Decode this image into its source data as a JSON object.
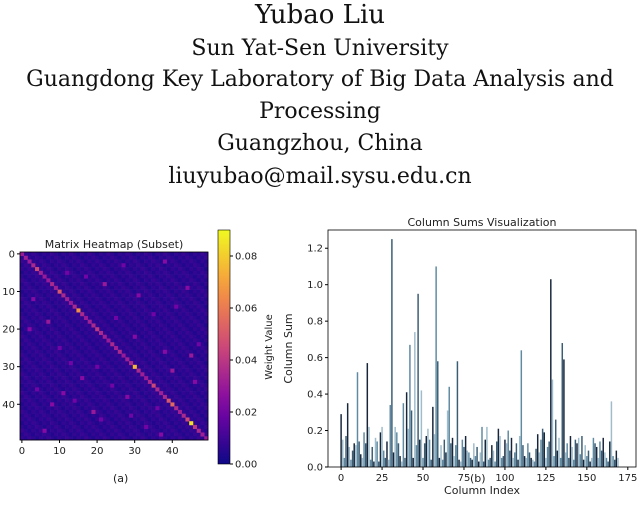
{
  "author": {
    "name": "Yubao Liu",
    "affiliation_lines": [
      "Sun Yat-Sen University",
      "Guangdong Key Laboratory of Big Data Analysis and",
      "Processing",
      "Guangzhou, China",
      "liuyubao@mail.sysu.edu.cn"
    ]
  },
  "panel_labels": [
    "(a)",
    "(b)"
  ],
  "chart_data": [
    {
      "type": "heatmap",
      "title": "Matrix Heatmap (Subset)",
      "xlabel": "",
      "ylabel": "",
      "size": 50,
      "x_ticks": [
        0,
        10,
        20,
        30,
        40
      ],
      "y_ticks": [
        0,
        10,
        20,
        30,
        40
      ],
      "colorbar": {
        "label": "Weight Value",
        "ticks": [
          "0.00",
          "0.02",
          "0.04",
          "0.06",
          "0.08"
        ],
        "min": 0,
        "max": 0.09,
        "colormap": "plasma"
      },
      "diagonal_values": [
        0.03,
        0.032,
        0.03,
        0.035,
        0.045,
        0.032,
        0.03,
        0.03,
        0.035,
        0.032,
        0.05,
        0.035,
        0.032,
        0.03,
        0.035,
        0.065,
        0.035,
        0.03,
        0.032,
        0.035,
        0.04,
        0.035,
        0.032,
        0.03,
        0.035,
        0.032,
        0.035,
        0.03,
        0.032,
        0.035,
        0.075,
        0.035,
        0.032,
        0.03,
        0.035,
        0.045,
        0.035,
        0.032,
        0.035,
        0.05,
        0.055,
        0.035,
        0.032,
        0.035,
        0.045,
        0.085,
        0.04,
        0.035,
        0.032,
        0.03
      ],
      "off_diagonal_scatter": [
        [
          2,
          38,
          0.025
        ],
        [
          5,
          12,
          0.02
        ],
        [
          8,
          22,
          0.03
        ],
        [
          12,
          3,
          0.025
        ],
        [
          14,
          41,
          0.02
        ],
        [
          18,
          7,
          0.03
        ],
        [
          22,
          30,
          0.025
        ],
        [
          25,
          10,
          0.02
        ],
        [
          27,
          45,
          0.03
        ],
        [
          33,
          16,
          0.025
        ],
        [
          36,
          4,
          0.02
        ],
        [
          38,
          28,
          0.025
        ],
        [
          42,
          19,
          0.03
        ],
        [
          46,
          33,
          0.02
        ],
        [
          3,
          27,
          0.02
        ],
        [
          9,
          44,
          0.025
        ],
        [
          16,
          35,
          0.02
        ],
        [
          20,
          2,
          0.025
        ],
        [
          29,
          13,
          0.02
        ],
        [
          31,
          40,
          0.03
        ],
        [
          35,
          24,
          0.02
        ],
        [
          40,
          8,
          0.025
        ],
        [
          44,
          21,
          0.02
        ],
        [
          48,
          37,
          0.025
        ],
        [
          6,
          17,
          0.02
        ],
        [
          11,
          31,
          0.025
        ],
        [
          24,
          47,
          0.02
        ],
        [
          37,
          11,
          0.025
        ],
        [
          43,
          29,
          0.02
        ],
        [
          47,
          6,
          0.025
        ],
        [
          17,
          25,
          0.02
        ],
        [
          26,
          38,
          0.025
        ],
        [
          30,
          20,
          0.02
        ],
        [
          34,
          46,
          0.025
        ],
        [
          39,
          14,
          0.02
        ],
        [
          41,
          36,
          0.02
        ]
      ]
    },
    {
      "type": "bar",
      "title": "Column Sums Visualization",
      "xlabel": "Column Index",
      "ylabel": "Column Sum",
      "xlim": [
        -8,
        180
      ],
      "ylim": [
        0,
        1.3
      ],
      "x_ticks": [
        0,
        25,
        50,
        75,
        100,
        125,
        150,
        175
      ],
      "y_ticks": [
        "0.0",
        "0.2",
        "0.4",
        "0.6",
        "0.8",
        "1.0",
        "1.2"
      ],
      "x": [
        0,
        1,
        2,
        3,
        4,
        5,
        6,
        7,
        8,
        9,
        10,
        11,
        12,
        13,
        14,
        15,
        16,
        17,
        18,
        19,
        20,
        21,
        22,
        23,
        24,
        25,
        26,
        27,
        28,
        29,
        30,
        31,
        32,
        33,
        34,
        35,
        36,
        37,
        38,
        39,
        40,
        41,
        42,
        43,
        44,
        45,
        46,
        47,
        48,
        49,
        50,
        51,
        52,
        53,
        54,
        55,
        56,
        57,
        58,
        59,
        60,
        61,
        62,
        63,
        64,
        65,
        66,
        67,
        68,
        69,
        70,
        71,
        72,
        73,
        74,
        75,
        76,
        77,
        78,
        79,
        80,
        81,
        82,
        83,
        84,
        85,
        86,
        87,
        88,
        89,
        90,
        91,
        92,
        93,
        94,
        95,
        96,
        97,
        98,
        99,
        100,
        101,
        102,
        103,
        104,
        105,
        106,
        107,
        108,
        109,
        110,
        111,
        112,
        113,
        114,
        115,
        116,
        117,
        118,
        119,
        120,
        121,
        122,
        123,
        124,
        125,
        126,
        127,
        128,
        129,
        130,
        131,
        132,
        133,
        134,
        135,
        136,
        137,
        138,
        139,
        140,
        141,
        142,
        143,
        144,
        145,
        146,
        147,
        148,
        149,
        150,
        151,
        152,
        153,
        154,
        155,
        156,
        157,
        158,
        159,
        160,
        161,
        162,
        163,
        164,
        165,
        166,
        167,
        168,
        169
      ],
      "values": [
        0.29,
        0.15,
        0.05,
        0.17,
        0.35,
        0.11,
        0.04,
        0.09,
        0.13,
        0.12,
        0.52,
        0.14,
        0.07,
        0.05,
        0.19,
        0.13,
        0.57,
        0.22,
        0.04,
        0.11,
        0.03,
        0.16,
        0.14,
        0.03,
        0.19,
        0.22,
        0.09,
        0.05,
        0.14,
        0.04,
        0.34,
        1.25,
        0.08,
        0.22,
        0.19,
        0.13,
        0.06,
        0.03,
        0.35,
        0.05,
        0.41,
        0.21,
        0.67,
        0.31,
        0.05,
        0.74,
        0.12,
        0.95,
        0.15,
        0.42,
        0.05,
        0.13,
        0.17,
        0.21,
        0.15,
        0.04,
        0.33,
        0.18,
        1.1,
        0.58,
        0.05,
        0.12,
        0.04,
        0.15,
        0.08,
        0.31,
        0.44,
        0.13,
        0.16,
        0.06,
        0.12,
        0.58,
        0.04,
        0.03,
        0.15,
        0.11,
        0.17,
        0.09,
        0.08,
        0.05,
        0.04,
        0.13,
        0.06,
        0.11,
        0.03,
        0.08,
        0.22,
        0.03,
        0.15,
        0.22,
        0.04,
        0.05,
        0.12,
        0.09,
        0.03,
        0.14,
        0.21,
        0.17,
        0.05,
        0.06,
        0.15,
        0.13,
        0.2,
        0.09,
        0.16,
        0.05,
        0.08,
        0.13,
        0.04,
        0.17,
        0.64,
        0.12,
        0.06,
        0.05,
        0.13,
        0.08,
        0.05,
        0.04,
        0.03,
        0.1,
        0.18,
        0.08,
        0.15,
        0.21,
        0.19,
        0.05,
        0.11,
        0.14,
        1.03,
        0.48,
        0.06,
        0.26,
        0.09,
        0.16,
        0.05,
        0.68,
        0.59,
        0.08,
        0.13,
        0.05,
        0.17,
        0.11,
        0.04,
        0.15,
        0.13,
        0.16,
        0.07,
        0.17,
        0.04,
        0.12,
        0.06,
        0.09,
        0.03,
        0.05,
        0.16,
        0.13,
        0.11,
        0.05,
        0.14,
        0.09,
        0.16,
        0.08,
        0.05,
        0.03,
        0.14,
        0.36,
        0.06,
        0.04,
        0.09,
        0.05
      ]
    }
  ]
}
